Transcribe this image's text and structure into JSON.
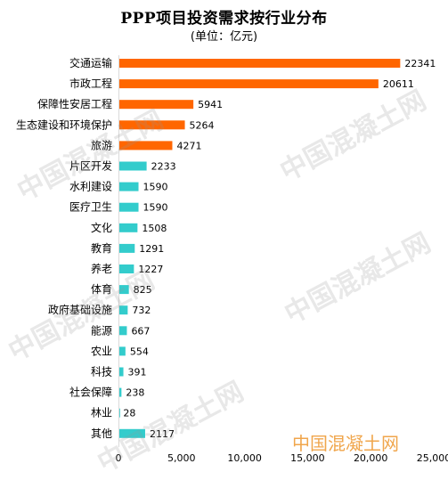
{
  "watermark": "中国混凝土网",
  "chart_data": {
    "type": "bar",
    "orientation": "horizontal",
    "title": "PPP项目投资需求按行业分布",
    "subtitle": "(单位：亿元)",
    "categories": [
      "交通运输",
      "市政工程",
      "保障性安居工程",
      "生态建设和环境保护",
      "旅游",
      "片区开发",
      "水利建设",
      "医疗卫生",
      "文化",
      "教育",
      "养老",
      "体育",
      "政府基础设施",
      "能源",
      "农业",
      "科技",
      "社会保障",
      "林业",
      "其他"
    ],
    "values": [
      22341,
      20611,
      5941,
      5264,
      4271,
      2233,
      1590,
      1590,
      1508,
      1291,
      1227,
      825,
      732,
      667,
      554,
      391,
      238,
      28,
      2117
    ],
    "value_labels": [
      "22341",
      "20611",
      "5941",
      "5264",
      "4271",
      "2233",
      "1590",
      "1590",
      "1508",
      "1291",
      "1227",
      "825",
      "732",
      "667",
      "554",
      "391",
      "238",
      "28",
      "2117"
    ],
    "bar_colors": [
      "#ff6600",
      "#ff6600",
      "#ff6600",
      "#ff6600",
      "#ff6600",
      "#33cccc",
      "#33cccc",
      "#33cccc",
      "#33cccc",
      "#33cccc",
      "#33cccc",
      "#33cccc",
      "#33cccc",
      "#33cccc",
      "#33cccc",
      "#33cccc",
      "#33cccc",
      "#33cccc",
      "#33cccc"
    ],
    "xlim": [
      0,
      25000
    ],
    "xticks": [
      0,
      5000,
      10000,
      15000,
      20000,
      25000
    ],
    "xtick_labels": [
      "0",
      "5,000",
      "10,000",
      "15,000",
      "20,000",
      "25,000"
    ],
    "grid": false,
    "legend": "none"
  }
}
